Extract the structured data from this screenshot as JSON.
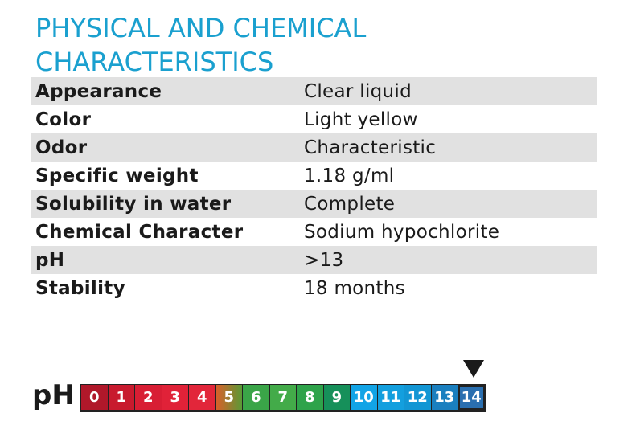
{
  "title": {
    "line1": "PHYSICAL AND CHEMICAL",
    "line2": "CHARACTERISTICS"
  },
  "properties": [
    {
      "name": "Appearance",
      "value": "Clear liquid"
    },
    {
      "name": "Color",
      "value": "Light yellow"
    },
    {
      "name": "Odor",
      "value": "Characteristic"
    },
    {
      "name": "Specific weight",
      "value": "1.18 g/ml"
    },
    {
      "name": "Solubility in water",
      "value": "Complete"
    },
    {
      "name": "Chemical Character",
      "value": "Sodium hypochlorite"
    },
    {
      "name": "pH",
      "value": ">13"
    },
    {
      "name": "Stability",
      "value": "18 months"
    }
  ],
  "ph_scale": {
    "label": "pH",
    "marker_value": "14",
    "cells": [
      {
        "value": "0",
        "color": "#b0182a"
      },
      {
        "value": "1",
        "color": "#c81a2e"
      },
      {
        "value": "2",
        "color": "#d81e34"
      },
      {
        "value": "3",
        "color": "#e02238"
      },
      {
        "value": "4",
        "color": "#e2263a"
      },
      {
        "value": "5",
        "color": "#d8602a",
        "color2": "#5a9a36"
      },
      {
        "value": "6",
        "color": "#3aa548"
      },
      {
        "value": "7",
        "color": "#43ab49"
      },
      {
        "value": "8",
        "color": "#2ea34a"
      },
      {
        "value": "9",
        "color": "#16905a"
      },
      {
        "value": "10",
        "color": "#12a4e6"
      },
      {
        "value": "11",
        "color": "#139fde"
      },
      {
        "value": "12",
        "color": "#1296d4"
      },
      {
        "value": "13",
        "color": "#1a7fbf"
      },
      {
        "value": "14",
        "color": "#2a6fb0"
      }
    ]
  }
}
